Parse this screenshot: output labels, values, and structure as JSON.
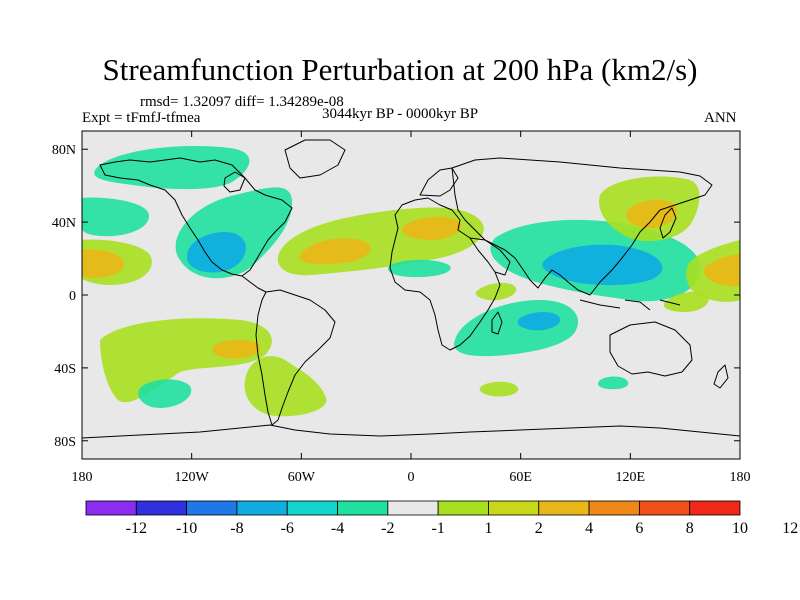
{
  "title": "Streamfunction Perturbation at 200 hPa (km2/s)",
  "stats": "rmsd= 1.32097 diff= 1.34289e-08",
  "experiment": "Expt = tFmfJ-tfmea",
  "period": "3044kyr BP - 0000kyr BP",
  "season": "ANN",
  "colors": {
    "background": "#e8e8e8",
    "coastline": "#000000",
    "levels": [
      "#8b2cf0",
      "#3030e0",
      "#1e78e8",
      "#10aee0",
      "#14d4d0",
      "#20e0a0",
      "#e8e8e8",
      "#a8e020",
      "#c8d818",
      "#e8b818",
      "#f08818",
      "#f05018",
      "#f02818"
    ]
  },
  "chart_data": {
    "type": "filled-contour-map",
    "variable": "Streamfunction Perturbation at 200 hPa",
    "units": "km2/s",
    "xaxis": {
      "range": [
        -180,
        180
      ],
      "ticks": [
        -180,
        -120,
        -60,
        0,
        60,
        120,
        180
      ],
      "tick_labels": [
        "180",
        "120W",
        "60W",
        "0",
        "60E",
        "120E",
        "180"
      ]
    },
    "yaxis": {
      "range": [
        -90,
        90
      ],
      "ticks": [
        80,
        40,
        0,
        -40,
        -80
      ],
      "tick_labels": [
        "80N",
        "40N",
        "0",
        "40S",
        "80S"
      ]
    },
    "colorbar": {
      "levels": [
        -12,
        -10,
        -8,
        -6,
        -4,
        -2,
        -1,
        1,
        2,
        4,
        6,
        8,
        10,
        12
      ],
      "labels": [
        "-12",
        "-10",
        "-8",
        "-6",
        "-4",
        "-2",
        "-1",
        "1",
        "2",
        "4",
        "6",
        "8",
        "10",
        "12"
      ]
    },
    "regions": [
      {
        "name": "arctic-canada-negative",
        "lon": [
          -150,
          -80
        ],
        "lat": [
          65,
          82
        ],
        "level": "-1 to -2"
      },
      {
        "name": "north-atlantic-negative",
        "lon": [
          -105,
          -50
        ],
        "lat": [
          10,
          50
        ],
        "level": "-2 to -4"
      },
      {
        "name": "east-pacific-negative",
        "lon": [
          -180,
          -150
        ],
        "lat": [
          35,
          55
        ],
        "level": "-2"
      },
      {
        "name": "north-atlantic-africa-positive",
        "lon": [
          -60,
          45
        ],
        "lat": [
          15,
          50
        ],
        "level": "2 to 4"
      },
      {
        "name": "asia-negative",
        "lon": [
          55,
          140
        ],
        "lat": [
          10,
          45
        ],
        "level": "-2 to -4"
      },
      {
        "name": "north-pacific-positive",
        "lon": [
          105,
          160
        ],
        "lat": [
          40,
          75
        ],
        "level": "2 to 4"
      },
      {
        "name": "central-pacific-positive",
        "lon": [
          -180,
          -160
        ],
        "lat": [
          5,
          35
        ],
        "level": "4 to 6"
      },
      {
        "name": "west-pacific-positive",
        "lon": [
          150,
          180
        ],
        "lat": [
          0,
          35
        ],
        "level": "4 to 6"
      },
      {
        "name": "south-pacific-positive",
        "lon": [
          -170,
          -100
        ],
        "lat": [
          -60,
          -20
        ],
        "level": "2"
      },
      {
        "name": "south-pacific-negative-core",
        "lon": [
          -145,
          -120
        ],
        "lat": [
          -60,
          -45
        ],
        "level": "-2"
      },
      {
        "name": "south-america-positive",
        "lon": [
          -95,
          -50
        ],
        "lat": [
          -65,
          -15
        ],
        "level": "2"
      },
      {
        "name": "indian-ocean-negative",
        "lon": [
          20,
          90
        ],
        "lat": [
          -35,
          -5
        ],
        "level": "-2 to -4"
      },
      {
        "name": "south-indian-negative",
        "lon": [
          90,
          110
        ],
        "lat": [
          -52,
          -48
        ],
        "level": "-2"
      },
      {
        "name": "south-atlantic-positive",
        "lon": [
          35,
          55
        ],
        "lat": [
          -52,
          -46
        ],
        "level": "2"
      }
    ]
  }
}
